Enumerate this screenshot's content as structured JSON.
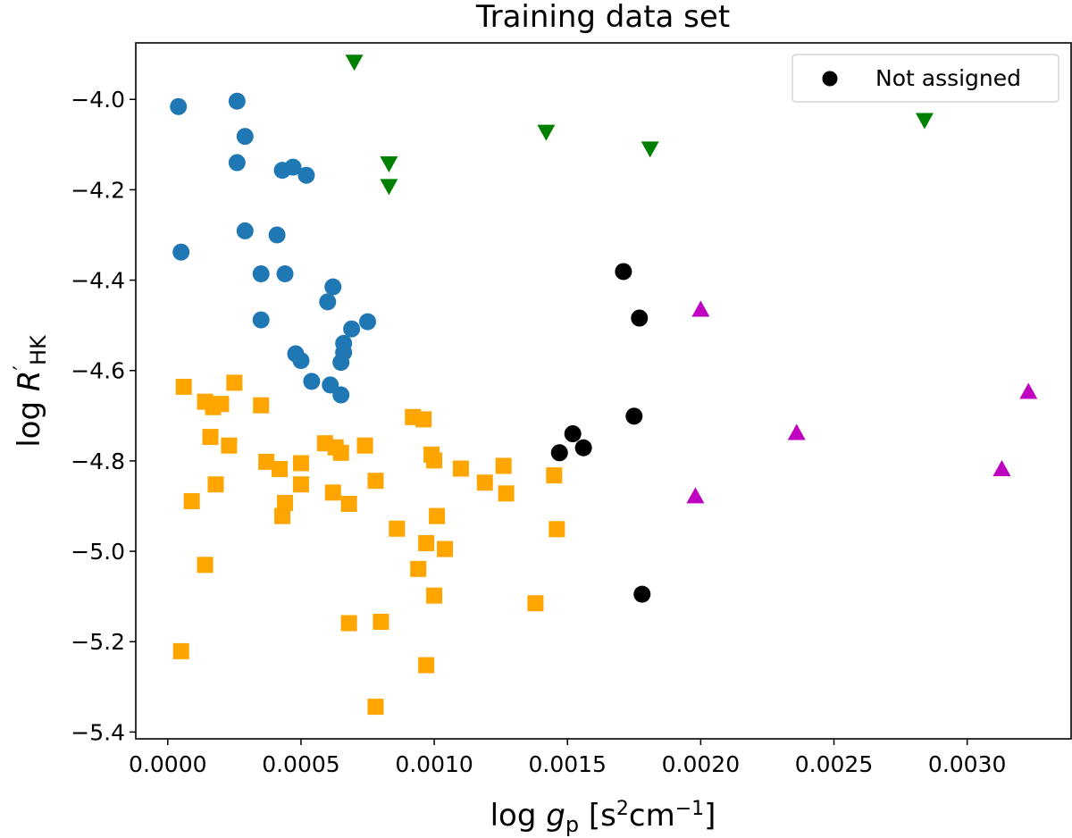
{
  "chart_data": {
    "type": "scatter",
    "title": "Training data set",
    "xlabel": {
      "prefix": "log",
      "symbol": "g",
      "subscript": "p",
      "unit_open": "[s",
      "unit_sup1": "2",
      "unit_mid": "cm",
      "unit_sup2": "−1",
      "unit_close": "]"
    },
    "ylabel": {
      "prefix": "log",
      "symbol": "R",
      "prime": "′",
      "subscript": "HK"
    },
    "xlim": [
      -0.00012,
      0.00339
    ],
    "ylim": [
      -5.415,
      -3.875
    ],
    "xticks": [
      0.0,
      0.0005,
      0.001,
      0.0015,
      0.002,
      0.0025,
      0.003
    ],
    "xtick_labels": [
      "0.0000",
      "0.0005",
      "0.0010",
      "0.0015",
      "0.0020",
      "0.0025",
      "0.0030"
    ],
    "yticks": [
      -4.0,
      -4.2,
      -4.4,
      -4.6,
      -4.8,
      -5.0,
      -5.2,
      -5.4
    ],
    "ytick_labels": [
      "−4.0",
      "−4.2",
      "−4.4",
      "−4.6",
      "−4.8",
      "−5.0",
      "−5.2",
      "−5.4"
    ],
    "legend": {
      "position": "top-right",
      "entries": [
        {
          "label": "Not assigned",
          "series": "not-assigned"
        }
      ]
    },
    "series": [
      {
        "name": "blue-circles",
        "marker": "circle",
        "color": "#1f77b4",
        "points": [
          [
            4e-05,
            -4.016
          ],
          [
            5e-05,
            -4.338
          ],
          [
            0.00026,
            -4.004
          ],
          [
            0.00026,
            -4.14
          ],
          [
            0.00029,
            -4.082
          ],
          [
            0.00029,
            -4.291
          ],
          [
            0.00035,
            -4.386
          ],
          [
            0.00035,
            -4.488
          ],
          [
            0.00041,
            -4.3
          ],
          [
            0.00043,
            -4.157
          ],
          [
            0.00044,
            -4.386
          ],
          [
            0.00047,
            -4.15
          ],
          [
            0.00048,
            -4.563
          ],
          [
            0.0005,
            -4.578
          ],
          [
            0.00052,
            -4.168
          ],
          [
            0.00054,
            -4.624
          ],
          [
            0.0006,
            -4.448
          ],
          [
            0.00061,
            -4.632
          ],
          [
            0.00062,
            -4.415
          ],
          [
            0.00065,
            -4.582
          ],
          [
            0.00065,
            -4.654
          ],
          [
            0.00066,
            -4.56
          ],
          [
            0.00066,
            -4.54
          ],
          [
            0.00069,
            -4.508
          ],
          [
            0.00075,
            -4.492
          ]
        ]
      },
      {
        "name": "orange-squares",
        "marker": "square",
        "color": "#ffa500",
        "points": [
          [
            5e-05,
            -5.221
          ],
          [
            6e-05,
            -4.636
          ],
          [
            9e-05,
            -4.889
          ],
          [
            0.00014,
            -4.669
          ],
          [
            0.00014,
            -5.03
          ],
          [
            0.00016,
            -4.747
          ],
          [
            0.00017,
            -4.681
          ],
          [
            0.00018,
            -4.852
          ],
          [
            0.0002,
            -4.674
          ],
          [
            0.00023,
            -4.766
          ],
          [
            0.00025,
            -4.627
          ],
          [
            0.00035,
            -4.677
          ],
          [
            0.00037,
            -4.802
          ],
          [
            0.00042,
            -4.818
          ],
          [
            0.00043,
            -4.922
          ],
          [
            0.00044,
            -4.893
          ],
          [
            0.0005,
            -4.805
          ],
          [
            0.0005,
            -4.852
          ],
          [
            0.00059,
            -4.761
          ],
          [
            0.00062,
            -4.87
          ],
          [
            0.00063,
            -4.77
          ],
          [
            0.00065,
            -4.782
          ],
          [
            0.00068,
            -4.895
          ],
          [
            0.00068,
            -5.159
          ],
          [
            0.00074,
            -4.766
          ],
          [
            0.00078,
            -4.844
          ],
          [
            0.00078,
            -5.344
          ],
          [
            0.0008,
            -5.156
          ],
          [
            0.00086,
            -4.95
          ],
          [
            0.00092,
            -4.703
          ],
          [
            0.00094,
            -5.039
          ],
          [
            0.00096,
            -4.708
          ],
          [
            0.00097,
            -5.252
          ],
          [
            0.00097,
            -4.982
          ],
          [
            0.00099,
            -4.786
          ],
          [
            0.001,
            -5.098
          ],
          [
            0.001,
            -4.799
          ],
          [
            0.00101,
            -4.922
          ],
          [
            0.00104,
            -4.995
          ],
          [
            0.0011,
            -4.817
          ],
          [
            0.00119,
            -4.848
          ],
          [
            0.00126,
            -4.811
          ],
          [
            0.00127,
            -4.872
          ],
          [
            0.00138,
            -5.115
          ],
          [
            0.00145,
            -4.832
          ],
          [
            0.00146,
            -4.951
          ]
        ]
      },
      {
        "name": "not-assigned",
        "marker": "circle",
        "color": "#000000",
        "points": [
          [
            0.00147,
            -4.782
          ],
          [
            0.00152,
            -4.74
          ],
          [
            0.00156,
            -4.771
          ],
          [
            0.00171,
            -4.381
          ],
          [
            0.00175,
            -4.701
          ],
          [
            0.00177,
            -4.484
          ],
          [
            0.00178,
            -5.095
          ]
        ]
      },
      {
        "name": "green-down-triangles",
        "marker": "triangle-down",
        "color": "#008000",
        "points": [
          [
            0.0007,
            -3.917
          ],
          [
            0.00083,
            -4.142
          ],
          [
            0.00083,
            -4.192
          ],
          [
            0.00142,
            -4.072
          ],
          [
            0.00181,
            -4.109
          ],
          [
            0.00284,
            -4.046
          ]
        ]
      },
      {
        "name": "magenta-up-triangles",
        "marker": "triangle-up",
        "color": "#c000c0",
        "points": [
          [
            0.00198,
            -4.878
          ],
          [
            0.002,
            -4.465
          ],
          [
            0.00236,
            -4.738
          ],
          [
            0.00313,
            -4.818
          ],
          [
            0.00323,
            -4.647
          ]
        ]
      }
    ]
  }
}
